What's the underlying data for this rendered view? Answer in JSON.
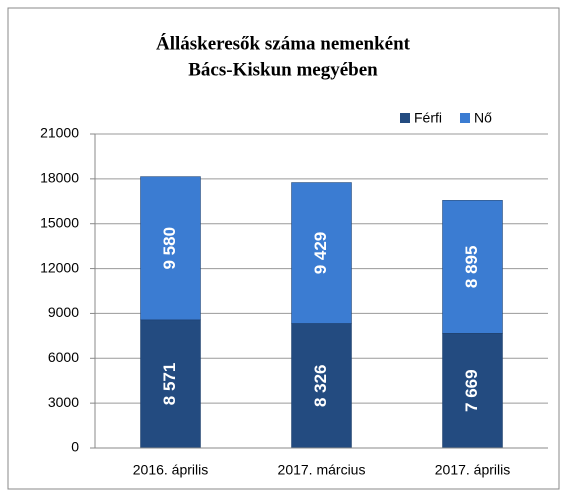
{
  "chart_data": {
    "type": "stacked_bar",
    "title": [
      "Álláskeresők száma nemenként",
      "Bács-Kiskun megyében"
    ],
    "categories": [
      "2016. április",
      "2017. március",
      "2017. április"
    ],
    "series": [
      {
        "name": "Férfi",
        "color": "#234b80",
        "values": [
          8571,
          8326,
          7669
        ],
        "value_labels": [
          "8 571",
          "8 326",
          "7 669"
        ]
      },
      {
        "name": "Nő",
        "color": "#3b7cd2",
        "values": [
          9580,
          9429,
          8895
        ],
        "value_labels": [
          "9 580",
          "9 429",
          "8 895"
        ]
      }
    ],
    "ylim": [
      0,
      21000
    ],
    "yticks": [
      0,
      3000,
      6000,
      9000,
      12000,
      15000,
      18000,
      21000
    ],
    "grid": true,
    "legend": "top-right"
  }
}
